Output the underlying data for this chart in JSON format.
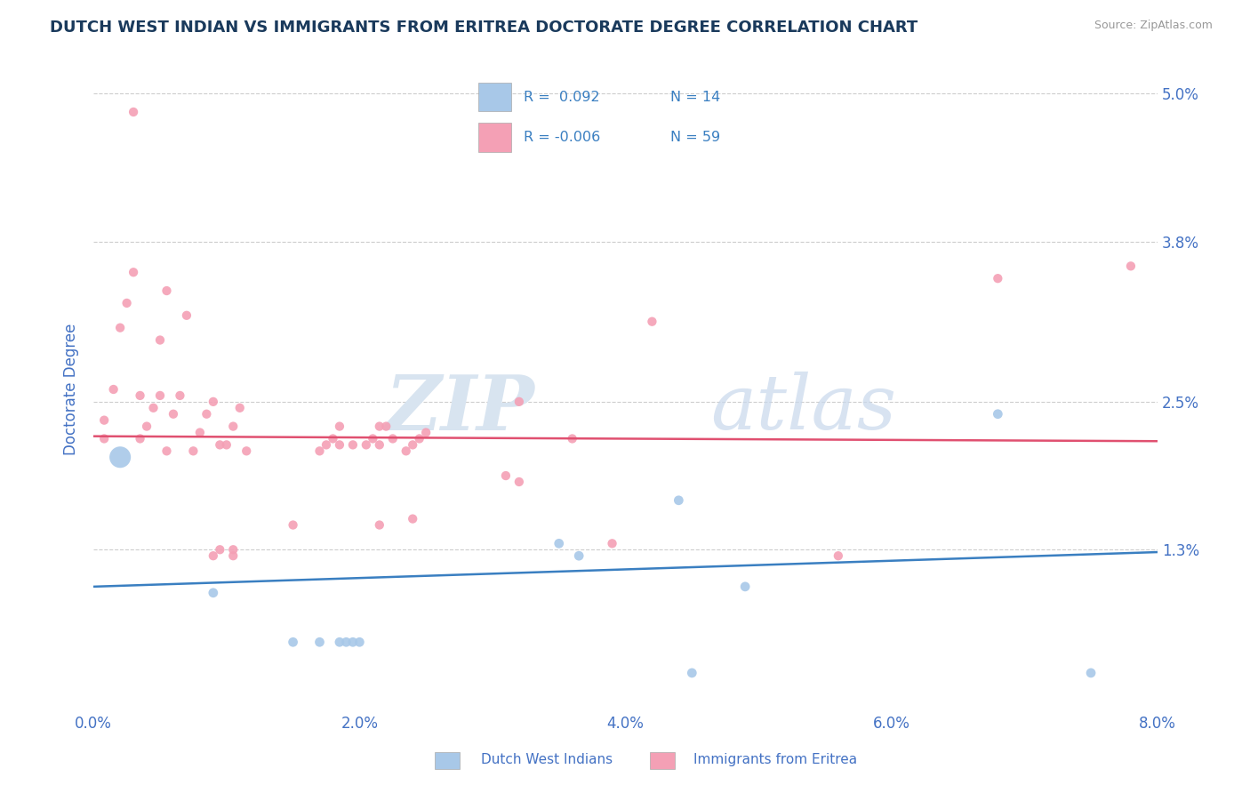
{
  "title": "DUTCH WEST INDIAN VS IMMIGRANTS FROM ERITREA DOCTORATE DEGREE CORRELATION CHART",
  "source": "Source: ZipAtlas.com",
  "ylabel": "Doctorate Degree",
  "xlim": [
    0.0,
    8.0
  ],
  "ylim": [
    0.0,
    5.2
  ],
  "xticks": [
    0.0,
    2.0,
    4.0,
    6.0,
    8.0
  ],
  "xtick_labels": [
    "0.0%",
    "2.0%",
    "4.0%",
    "6.0%",
    "8.0%"
  ],
  "ytick_vals": [
    1.3,
    2.5,
    3.8,
    5.0
  ],
  "ytick_labels": [
    "1.3%",
    "2.5%",
    "3.8%",
    "5.0%"
  ],
  "watermark_zip": "ZIP",
  "watermark_atlas": "atlas",
  "blue_color": "#a8c8e8",
  "pink_color": "#f4a0b5",
  "blue_line_color": "#3a7fc1",
  "pink_line_color": "#e05070",
  "legend_label1": "Dutch West Indians",
  "legend_label2": "Immigrants from Eritrea",
  "blue_points_x": [
    0.9,
    1.5,
    1.7,
    1.85,
    1.9,
    1.95,
    2.0,
    3.5,
    3.65,
    4.4,
    4.5,
    6.8,
    7.5,
    4.9
  ],
  "blue_points_y": [
    0.95,
    0.55,
    0.55,
    0.55,
    0.55,
    0.55,
    0.55,
    1.35,
    1.25,
    1.7,
    0.3,
    2.4,
    0.3,
    1.0
  ],
  "big_blue_x": 0.2,
  "big_blue_y": 2.05,
  "big_blue_size": 300,
  "blue_small_size": 60,
  "pink_size": 55,
  "pink_points_x": [
    0.08,
    0.08,
    0.15,
    0.2,
    0.25,
    0.3,
    0.35,
    0.35,
    0.4,
    0.45,
    0.5,
    0.5,
    0.55,
    0.6,
    0.65,
    0.7,
    0.75,
    0.8,
    0.85,
    0.9,
    0.95,
    1.0,
    1.05,
    1.1,
    1.15,
    1.7,
    1.75,
    1.8,
    1.85,
    1.85,
    1.95,
    2.05,
    2.1,
    2.15,
    2.15,
    2.2,
    2.25,
    2.35,
    2.4,
    2.45,
    2.5,
    3.1,
    3.2,
    3.6,
    3.9,
    5.6,
    7.8,
    0.3,
    0.55,
    0.9,
    0.95,
    1.05,
    1.5,
    2.15,
    2.4,
    4.2,
    6.8,
    1.05,
    3.2
  ],
  "pink_points_y": [
    2.2,
    2.35,
    2.6,
    3.1,
    3.3,
    3.55,
    2.2,
    2.55,
    2.3,
    2.45,
    2.55,
    3.0,
    2.1,
    2.4,
    2.55,
    3.2,
    2.1,
    2.25,
    2.4,
    2.5,
    2.15,
    2.15,
    2.3,
    2.45,
    2.1,
    2.1,
    2.15,
    2.2,
    2.15,
    2.3,
    2.15,
    2.15,
    2.2,
    2.15,
    2.3,
    2.3,
    2.2,
    2.1,
    2.15,
    2.2,
    2.25,
    1.9,
    1.85,
    2.2,
    1.35,
    1.25,
    3.6,
    4.85,
    3.4,
    1.25,
    1.3,
    1.3,
    1.5,
    1.5,
    1.55,
    3.15,
    3.5,
    1.25,
    2.5
  ],
  "blue_trend_x": [
    0.0,
    8.0
  ],
  "blue_trend_y": [
    1.0,
    1.28
  ],
  "pink_trend_x": [
    0.0,
    8.0
  ],
  "pink_trend_y": [
    2.22,
    2.18
  ],
  "title_color": "#1a3a5c",
  "axis_color": "#4472c4",
  "grid_color": "#c8c8c8",
  "background_color": "#ffffff"
}
